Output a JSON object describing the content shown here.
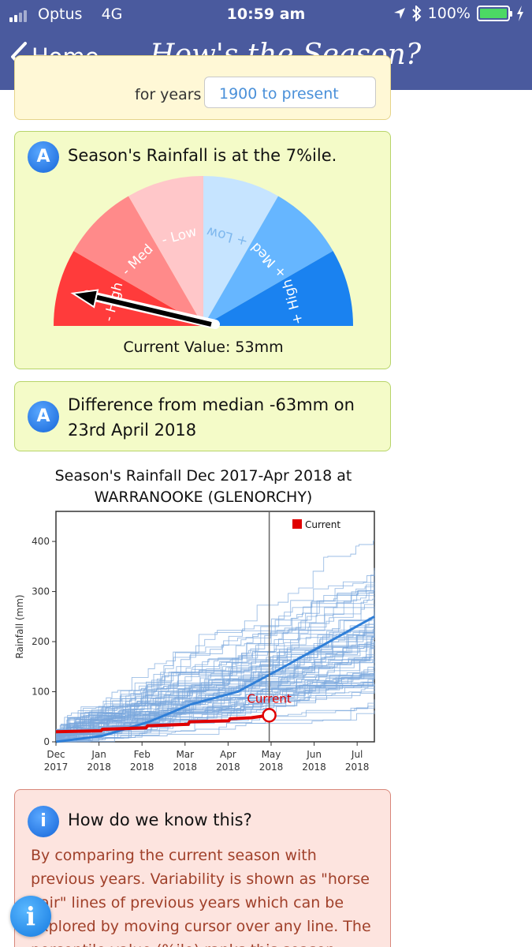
{
  "status_bar": {
    "carrier": "Optus",
    "network": "4G",
    "time": "10:59 am",
    "battery": "100%"
  },
  "nav": {
    "back_label": "Home",
    "title": "How's the Season?"
  },
  "previous_card": {
    "label": "for years",
    "select_value": "1900 to present"
  },
  "percentile_card": {
    "badge": "A",
    "title": "Season's Rainfall is at the 7%ile.",
    "current_value": "Current Value: 53mm",
    "gauge_segments": [
      "- High",
      "- Med",
      "- Low",
      "+ Low",
      "+ Med",
      "+ High"
    ],
    "gauge_colors": [
      "#ff3b3b",
      "#ff8a8a",
      "#ffc7c9",
      "#c6e4ff",
      "#66b6ff",
      "#1a82f0"
    ],
    "percentile": 7
  },
  "difference_card": {
    "badge": "A",
    "title": "Difference from median -63mm on 23rd April 2018"
  },
  "chart_data": {
    "type": "line",
    "title": "Season's Rainfall   Dec 2017-Apr 2018 at WARRANOOKE (GLENORCHY)",
    "ylabel": "Rainfall (mm)",
    "xlabel": "",
    "ylim": [
      0,
      460
    ],
    "yticks": [
      0,
      100,
      200,
      300,
      400
    ],
    "xticks": [
      "Dec 2017",
      "Jan 2018",
      "Feb 2018",
      "Mar 2018",
      "Apr 2018",
      "May 2018",
      "Jun 2018",
      "Jul 2018"
    ],
    "legend": "Current",
    "legend_position": "top-right",
    "current_label": "Current",
    "cursor_date": "23 Apr 2018",
    "series": [
      {
        "name": "Current",
        "color": "#e00000",
        "x_days": [
          0,
          30,
          31,
          60,
          61,
          88,
          89,
          115,
          116,
          130,
          142
        ],
        "values": [
          20,
          22,
          25,
          28,
          32,
          35,
          40,
          42,
          46,
          48,
          53
        ]
      }
    ],
    "median_line": {
      "color": "#2f7fd8",
      "x_days": [
        0,
        31,
        62,
        90,
        121,
        152,
        182,
        212
      ],
      "values": [
        0,
        12,
        40,
        75,
        100,
        150,
        200,
        250
      ]
    }
  },
  "info_card": {
    "title": "How do we know this?",
    "text": "By comparing the current season with previous years. Variability is shown as \"horse hair\" lines of previous years which can be explored by moving cursor over any line. The percentile value (%ile) ranks this season relative to years"
  },
  "fab": {
    "label": "i"
  }
}
